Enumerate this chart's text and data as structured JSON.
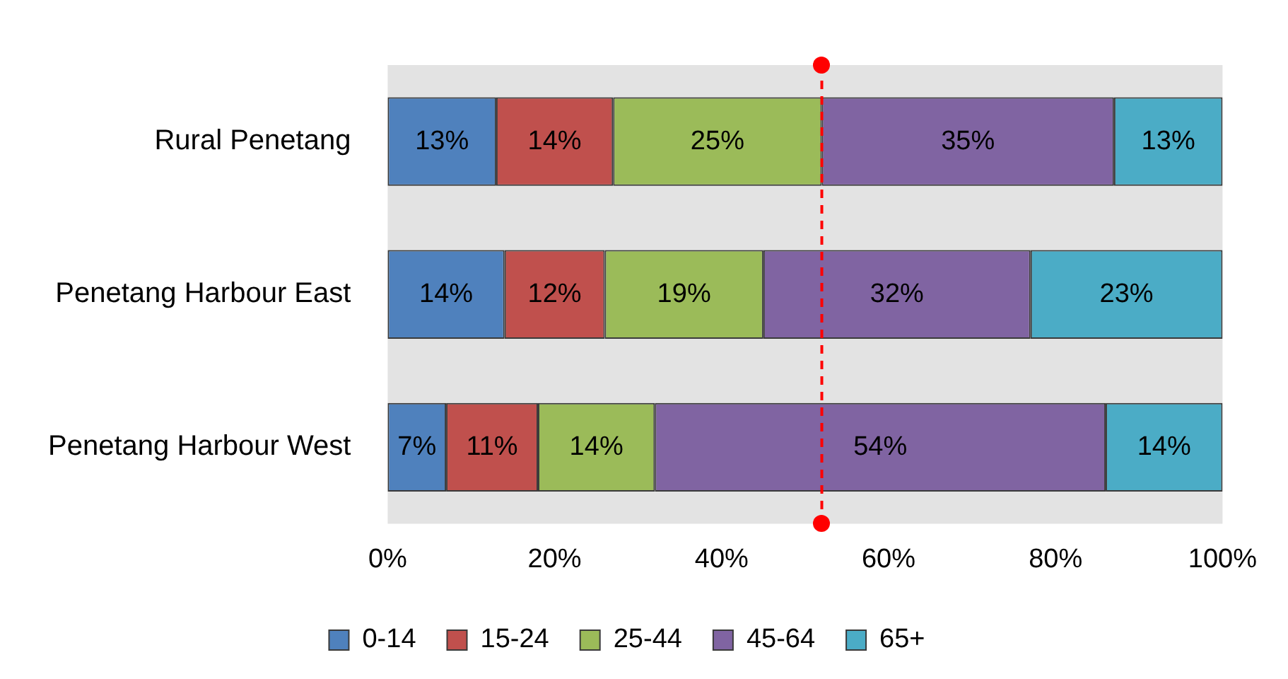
{
  "chart_data": {
    "type": "bar",
    "orientation": "horizontal",
    "stacked": true,
    "categories": [
      "Rural Penetang",
      "Penetang Harbour East",
      "Penetang Harbour West"
    ],
    "series": [
      {
        "name": "0-14",
        "color": "#4f81bd",
        "values": [
          13,
          14,
          7
        ],
        "value_labels": [
          "13%",
          "14%",
          "7%"
        ]
      },
      {
        "name": "15-24",
        "color": "#c0504d",
        "values": [
          14,
          12,
          11
        ],
        "value_labels": [
          "14%",
          "12%",
          "11%"
        ]
      },
      {
        "name": "25-44",
        "color": "#9bbb59",
        "values": [
          25,
          19,
          14
        ],
        "value_labels": [
          "25%",
          "19%",
          "14%"
        ]
      },
      {
        "name": "45-64",
        "color": "#8064a2",
        "values": [
          35,
          32,
          54
        ],
        "value_labels": [
          "35%",
          "32%",
          "54%"
        ]
      },
      {
        "name": "65+",
        "color": "#4bacc6",
        "values": [
          13,
          23,
          14
        ],
        "value_labels": [
          "13%",
          "23%",
          "14%"
        ]
      }
    ],
    "xlim": [
      0,
      100
    ],
    "xticks": [
      {
        "value": 0,
        "label": "0%"
      },
      {
        "value": 20,
        "label": "20%"
      },
      {
        "value": 40,
        "label": "40%"
      },
      {
        "value": 60,
        "label": "60%"
      },
      {
        "value": 80,
        "label": "80%"
      },
      {
        "value": 100,
        "label": "100%"
      }
    ],
    "ref_lines": [
      {
        "axis": "x",
        "value": 52,
        "color": "#ff0000",
        "line_style": "dashed"
      }
    ],
    "grid": false,
    "legend": "bottom"
  }
}
